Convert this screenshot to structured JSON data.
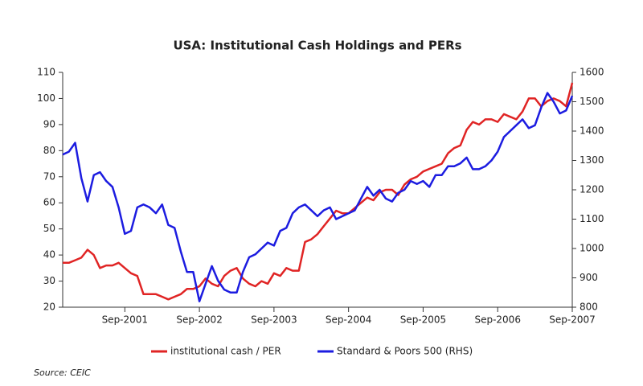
{
  "chart_data": {
    "type": "line",
    "title": "USA: Institutional Cash Holdings and PERs",
    "source": "Source: CEIC",
    "x": [
      "Nov-2000",
      "Dec-2000",
      "Jan-2001",
      "Feb-2001",
      "Mar-2001",
      "Apr-2001",
      "May-2001",
      "Jun-2001",
      "Jul-2001",
      "Aug-2001",
      "Sep-2001",
      "Oct-2001",
      "Nov-2001",
      "Dec-2001",
      "Jan-2002",
      "Feb-2002",
      "Mar-2002",
      "Apr-2002",
      "May-2002",
      "Jun-2002",
      "Jul-2002",
      "Aug-2002",
      "Sep-2002",
      "Oct-2002",
      "Nov-2002",
      "Dec-2002",
      "Jan-2003",
      "Feb-2003",
      "Mar-2003",
      "Apr-2003",
      "May-2003",
      "Jun-2003",
      "Jul-2003",
      "Aug-2003",
      "Sep-2003",
      "Oct-2003",
      "Nov-2003",
      "Dec-2003",
      "Jan-2004",
      "Feb-2004",
      "Mar-2004",
      "Apr-2004",
      "May-2004",
      "Jun-2004",
      "Jul-2004",
      "Aug-2004",
      "Sep-2004",
      "Oct-2004",
      "Nov-2004",
      "Dec-2004",
      "Jan-2005",
      "Feb-2005",
      "Mar-2005",
      "Apr-2005",
      "May-2005",
      "Jun-2005",
      "Jul-2005",
      "Aug-2005",
      "Sep-2005",
      "Oct-2005",
      "Nov-2005",
      "Dec-2005",
      "Jan-2006",
      "Feb-2006",
      "Mar-2006",
      "Apr-2006",
      "May-2006",
      "Jun-2006",
      "Jul-2006",
      "Aug-2006",
      "Sep-2006",
      "Oct-2006",
      "Nov-2006",
      "Dec-2006",
      "Jan-2007",
      "Feb-2007",
      "Mar-2007",
      "Apr-2007",
      "May-2007",
      "Jun-2007",
      "Jul-2007",
      "Aug-2007",
      "Sep-2007"
    ],
    "xticks": [
      "Sep-2001",
      "Sep-2002",
      "Sep-2003",
      "Sep-2004",
      "Sep-2005",
      "Sep-2006",
      "Sep-2007"
    ],
    "series": [
      {
        "name": "institutional cash / PER",
        "color": "#e02424",
        "axis": "y",
        "values": [
          37,
          37,
          38,
          39,
          42,
          40,
          35,
          36,
          36,
          37,
          35,
          33,
          32,
          25,
          25,
          25,
          24,
          23,
          24,
          25,
          27,
          27,
          28,
          31,
          29,
          28,
          32,
          34,
          35,
          31,
          29,
          28,
          30,
          29,
          33,
          32,
          35,
          34,
          34,
          45,
          46,
          48,
          51,
          54,
          57,
          56,
          56,
          58,
          60,
          62,
          61,
          64,
          65,
          65,
          63,
          67,
          69,
          70,
          72,
          73,
          74,
          75,
          79,
          81,
          82,
          88,
          91,
          90,
          92,
          92,
          91,
          94,
          93,
          92,
          95,
          100,
          100,
          97,
          99,
          100,
          99,
          97,
          106
        ]
      },
      {
        "name": "Standard & Poors 500 (RHS)",
        "color": "#1c1ce0",
        "axis": "y2",
        "values": [
          1320,
          1330,
          1360,
          1240,
          1160,
          1250,
          1260,
          1230,
          1210,
          1140,
          1050,
          1060,
          1140,
          1150,
          1140,
          1120,
          1150,
          1080,
          1070,
          990,
          920,
          920,
          820,
          880,
          940,
          890,
          860,
          850,
          850,
          920,
          970,
          980,
          1000,
          1020,
          1010,
          1060,
          1070,
          1120,
          1140,
          1150,
          1130,
          1110,
          1130,
          1140,
          1100,
          1110,
          1120,
          1130,
          1170,
          1210,
          1180,
          1200,
          1170,
          1160,
          1190,
          1200,
          1230,
          1220,
          1230,
          1210,
          1250,
          1250,
          1280,
          1280,
          1290,
          1310,
          1270,
          1270,
          1280,
          1300,
          1330,
          1380,
          1400,
          1420,
          1440,
          1410,
          1420,
          1480,
          1530,
          1500,
          1460,
          1470,
          1520
        ]
      }
    ],
    "ylim": [
      20,
      110
    ],
    "yticks": [
      20,
      30,
      40,
      50,
      60,
      70,
      80,
      90,
      100,
      110
    ],
    "y2lim": [
      800,
      1600
    ],
    "y2ticks": [
      800,
      900,
      1000,
      1100,
      1200,
      1300,
      1400,
      1500,
      1600
    ]
  }
}
